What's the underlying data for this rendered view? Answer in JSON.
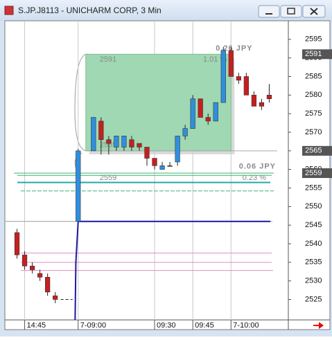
{
  "window": {
    "title": "S.JP.J8113 - UNICHARM CORP, 3 Min"
  },
  "chart_data": {
    "type": "candlestick",
    "open": [
      2543,
      2537,
      2534,
      2532,
      2531,
      2526,
      null,
      null,
      2546,
      null,
      2565,
      2573,
      2568,
      2566,
      2566,
      2568,
      2567,
      2566,
      2563,
      2560,
      2561,
      2562,
      2569,
      2571,
      2579,
      2574,
      2573,
      2578,
      2592,
      2585,
      2585,
      2580,
      2578,
      2580
    ],
    "high": [
      2544,
      2538,
      2535,
      2533,
      2532,
      2527,
      null,
      null,
      2565.5,
      null,
      2574,
      2574,
      2569,
      2569,
      2569,
      2569,
      2567,
      2566,
      2563,
      2562,
      2562,
      2569,
      2572,
      2580,
      2579,
      2575,
      2578,
      2593,
      2593,
      2586,
      2586,
      2581,
      2579,
      2583
    ],
    "low": [
      2536,
      2533,
      2532,
      2530,
      2526,
      2524,
      null,
      null,
      2546,
      null,
      2565,
      2564,
      2564,
      2565,
      2565,
      2565,
      2565,
      2561,
      2560,
      2560,
      2561,
      2561,
      2568,
      2571,
      2574,
      2572,
      2573,
      2578,
      2585,
      2583,
      2580,
      2577,
      2576,
      2578
    ],
    "close": [
      2537,
      2534,
      2533,
      2531,
      2527,
      2525,
      null,
      null,
      2565,
      null,
      2574,
      2568,
      2567,
      2569,
      2569,
      2566,
      2566,
      2563,
      2561,
      2561,
      2561,
      2569,
      2571,
      2579,
      2574,
      2573,
      2578,
      2592,
      2585,
      2584,
      2580,
      2577,
      2577,
      2579
    ],
    "colors": {
      "up": "#2f8fdf",
      "down": "#c81e1e"
    },
    "ylim": [
      2519.5,
      2600
    ],
    "yticks": [
      2525,
      2530,
      2535,
      2540,
      2545,
      2550,
      2555,
      2560,
      2565,
      2570,
      2575,
      2580,
      2585,
      2590,
      2595
    ],
    "xlim": [
      -1.5,
      35.5
    ],
    "xticks": [
      {
        "value": 1,
        "label": "14:45"
      },
      {
        "value": 8,
        "label": "7-09:00"
      },
      {
        "value": 18,
        "label": "09:30"
      },
      {
        "value": 23,
        "label": "09:45"
      },
      {
        "value": 28,
        "label": "7-10:00"
      }
    ],
    "price_markers": [
      2591,
      2565,
      2559
    ],
    "prev_close": 2525,
    "levels": [
      {
        "value": 2546,
        "color": "#9a9a9a"
      },
      {
        "value": 2546,
        "color": "#1a1a9c"
      },
      {
        "value": 2559,
        "color": "#3cb371"
      },
      {
        "value": 2558.4,
        "color": "#3cb371"
      },
      {
        "value": 2556.5,
        "color": "#20a8a8"
      },
      {
        "value": 2554.2,
        "color": "#3cb371"
      },
      {
        "value": 2537.5,
        "color": "#e58bc0"
      },
      {
        "value": 2535,
        "color": "#e58bc0"
      },
      {
        "value": 2532.8,
        "color": "#e58bc0"
      }
    ],
    "measures": [
      {
        "high": 2591,
        "low": 2565,
        "change": "0.26 JPY",
        "percent": "1.01 %"
      },
      {
        "high": 2565,
        "low": 2559,
        "change": "0.06 JPY",
        "percent": "0.23 %"
      }
    ]
  }
}
